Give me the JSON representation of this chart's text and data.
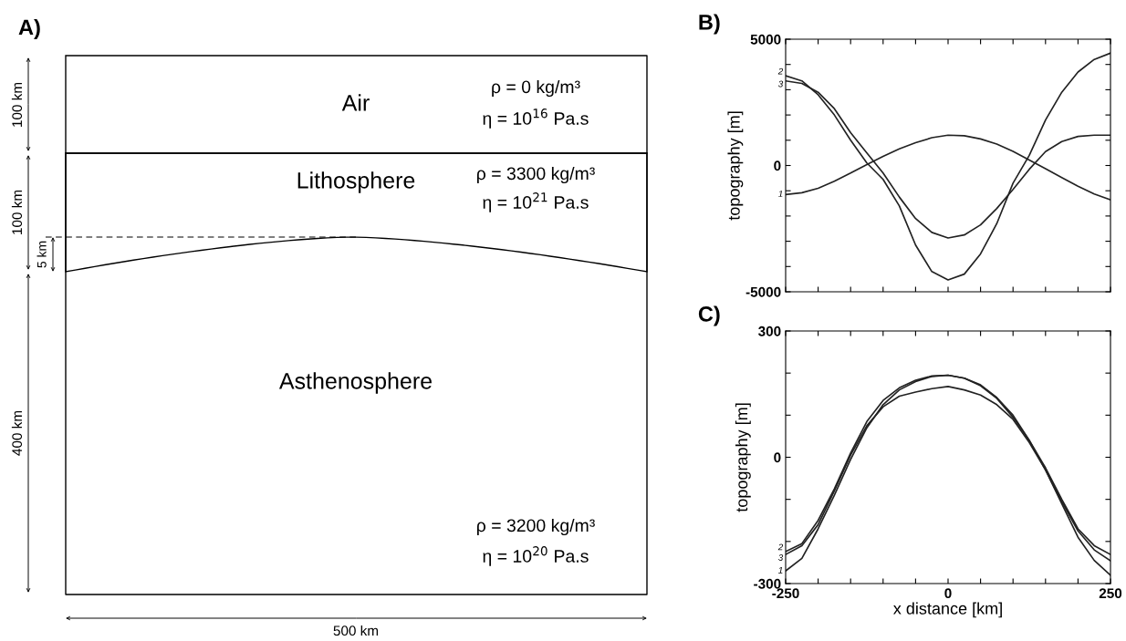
{
  "chart_data": [
    {
      "type": "other",
      "title": "A)",
      "annotations": [
        "Air",
        "ρ = 0 kg/m³",
        "η = 10$^{16}$ Pa.s",
        "Lithosphere",
        "ρ = 3300 kg/m³",
        "η = 10$^{21}$ Pa.s",
        "Asthenosphere",
        "ρ = 3200 kg/m³",
        "η = 10$^{20}$ Pa.s",
        "100 km",
        "100 km",
        "400 km",
        "5 km",
        "500 km"
      ]
    },
    {
      "type": "line",
      "title": "B)",
      "ylabel": "topography [m]",
      "xlim": [
        -250,
        250
      ],
      "ylim": [
        -5000,
        5000
      ],
      "tick_labels": "y",
      "grid": false,
      "xticks": [
        {
          "value": -250,
          "label": null
        },
        {
          "value": -200,
          "label": null
        },
        {
          "value": -150,
          "label": null
        },
        {
          "value": -100,
          "label": null
        },
        {
          "value": -50,
          "label": null
        },
        {
          "value": 0,
          "label": null
        },
        {
          "value": 50,
          "label": null
        },
        {
          "value": 100,
          "label": null
        },
        {
          "value": 150,
          "label": null
        },
        {
          "value": 200,
          "label": null
        },
        {
          "value": 250,
          "label": null
        }
      ],
      "yticks": [
        -5000,
        {
          "value": -4000,
          "label": null
        },
        {
          "value": -3000,
          "label": null
        },
        {
          "value": -2000,
          "label": null
        },
        {
          "value": -1000,
          "label": null
        },
        0,
        {
          "value": 1000,
          "label": null
        },
        {
          "value": 2000,
          "label": null
        },
        {
          "value": 3000,
          "label": null
        },
        {
          "value": 4000,
          "label": null
        },
        5000
      ],
      "x": [
        -250,
        -225,
        -200,
        -175,
        -150,
        -125,
        -100,
        -75,
        -50,
        -25,
        0,
        25,
        50,
        75,
        100,
        125,
        150,
        175,
        200,
        225,
        250
      ],
      "series": [
        {
          "name": "1",
          "color": "#222222",
          "values": [
            -1150,
            -1080,
            -900,
            -620,
            -300,
            40,
            360,
            660,
            900,
            1100,
            1200,
            1180,
            1050,
            850,
            560,
            220,
            -130,
            -480,
            -820,
            -1130,
            -1360
          ]
        },
        {
          "name": "2",
          "color": "#222222",
          "values": [
            3550,
            3350,
            2800,
            2000,
            1000,
            100,
            -550,
            -1600,
            -3150,
            -4200,
            -4530,
            -4300,
            -3500,
            -2300,
            -700,
            400,
            1800,
            2900,
            3700,
            4200,
            4450
          ]
        },
        {
          "name": "3",
          "color": "#222222",
          "values": [
            3350,
            3250,
            2900,
            2250,
            1300,
            500,
            -300,
            -1250,
            -2100,
            -2650,
            -2870,
            -2750,
            -2350,
            -1700,
            -950,
            -150,
            550,
            950,
            1150,
            1200,
            1200
          ]
        }
      ]
    },
    {
      "type": "line",
      "title": "C)",
      "ylabel": "topography [m]",
      "xlabel": "x distance [km]",
      "xlim": [
        -250,
        250
      ],
      "ylim": [
        -300,
        300
      ],
      "grid": false,
      "xticks": [
        -250,
        {
          "value": -200,
          "label": null
        },
        {
          "value": -150,
          "label": null
        },
        {
          "value": -100,
          "label": null
        },
        {
          "value": -50,
          "label": null
        },
        0,
        {
          "value": 50,
          "label": null
        },
        {
          "value": 100,
          "label": null
        },
        {
          "value": 150,
          "label": null
        },
        {
          "value": 200,
          "label": null
        },
        250
      ],
      "yticks": [
        -300,
        {
          "value": -200,
          "label": null
        },
        {
          "value": -100,
          "label": null
        },
        0,
        {
          "value": 100,
          "label": null
        },
        {
          "value": 200,
          "label": null
        },
        300
      ],
      "x": [
        -250,
        -225,
        -200,
        -175,
        -150,
        -125,
        -100,
        -75,
        -50,
        -25,
        0,
        25,
        50,
        75,
        100,
        125,
        150,
        175,
        200,
        225,
        250
      ],
      "series": [
        {
          "name": "1",
          "color": "#222222",
          "values": [
            -270,
            -240,
            -170,
            -90,
            -5,
            70,
            125,
            160,
            180,
            192,
            195,
            188,
            170,
            140,
            95,
            40,
            -30,
            -110,
            -190,
            -245,
            -280
          ]
        },
        {
          "name": "2",
          "color": "#222222",
          "values": [
            -224,
            -205,
            -150,
            -75,
            10,
            85,
            135,
            165,
            183,
            193,
            195,
            188,
            172,
            142,
            100,
            40,
            -25,
            -100,
            -170,
            -210,
            -231
          ]
        },
        {
          "name": "3",
          "color": "#222222",
          "values": [
            -231,
            -210,
            -160,
            -80,
            5,
            75,
            120,
            145,
            155,
            163,
            168,
            160,
            148,
            125,
            90,
            35,
            -30,
            -105,
            -175,
            -220,
            -246
          ]
        }
      ]
    }
  ]
}
